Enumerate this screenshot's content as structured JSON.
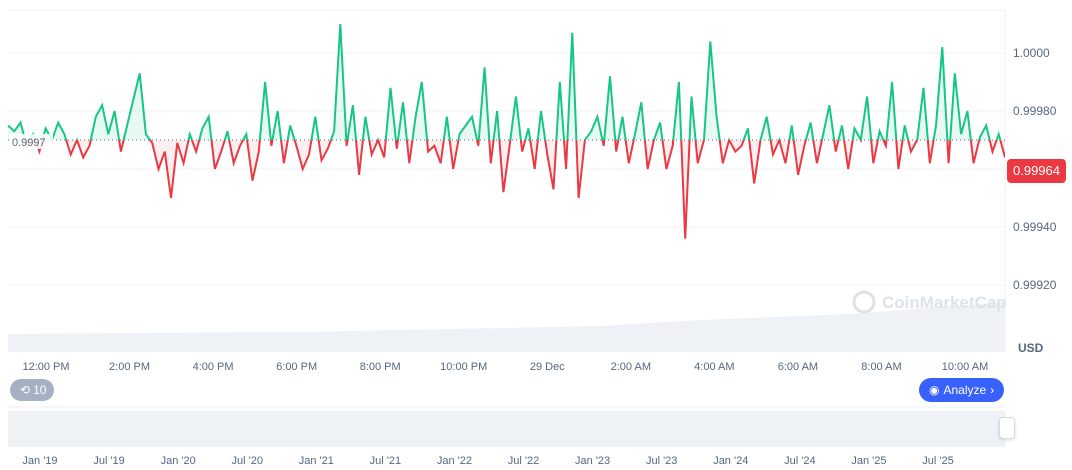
{
  "chart_data": {
    "type": "line",
    "currency_label": "USD",
    "reference_value": 0.9997,
    "reference_label": "0.9997",
    "current_price": 0.99964,
    "current_price_label": "0.99964",
    "ylim": [
      0.99905,
      1.00015
    ],
    "y_ticks": [
      {
        "v": 1.0,
        "label": "1.0000"
      },
      {
        "v": 0.9998,
        "label": "0.99980"
      },
      {
        "v": 0.9996,
        "label": "0.99960"
      },
      {
        "v": 0.9994,
        "label": "0.99940"
      },
      {
        "v": 0.9992,
        "label": "0.99920"
      }
    ],
    "x_ticks": [
      "12:00 PM",
      "2:00 PM",
      "4:00 PM",
      "6:00 PM",
      "8:00 PM",
      "10:00 PM",
      "29 Dec",
      "2:00 AM",
      "4:00 AM",
      "6:00 AM",
      "8:00 AM",
      "10:00 AM"
    ],
    "up_color": "#16c784",
    "down_color": "#ea3943",
    "values": [
      0.99975,
      0.99973,
      0.99976,
      0.99968,
      0.99972,
      0.99966,
      0.99974,
      0.9997,
      0.99976,
      0.99972,
      0.99965,
      0.9997,
      0.99964,
      0.99968,
      0.99978,
      0.99982,
      0.99972,
      0.9998,
      0.99966,
      0.99975,
      0.99984,
      0.99993,
      0.99972,
      0.99969,
      0.9996,
      0.99966,
      0.9995,
      0.99969,
      0.99962,
      0.99972,
      0.99966,
      0.99974,
      0.99978,
      0.9996,
      0.99966,
      0.99973,
      0.99962,
      0.99968,
      0.99972,
      0.99956,
      0.99966,
      0.9999,
      0.99968,
      0.9998,
      0.99962,
      0.99975,
      0.99968,
      0.9996,
      0.99965,
      0.99978,
      0.99963,
      0.99967,
      0.99973,
      1.0001,
      0.99968,
      0.99982,
      0.99958,
      0.99978,
      0.99965,
      0.9997,
      0.99964,
      0.99988,
      0.99967,
      0.99983,
      0.99962,
      0.99978,
      0.9999,
      0.99966,
      0.99968,
      0.99962,
      0.99978,
      0.9996,
      0.99972,
      0.99975,
      0.99978,
      0.99968,
      0.99995,
      0.99962,
      0.9998,
      0.99952,
      0.99968,
      0.99985,
      0.99966,
      0.99974,
      0.9996,
      0.9998,
      0.99965,
      0.99953,
      0.9999,
      0.9996,
      1.00007,
      0.9995,
      0.9997,
      0.99973,
      0.99978,
      0.99968,
      0.99992,
      0.99966,
      0.99978,
      0.99962,
      0.99972,
      0.99983,
      0.9996,
      0.9997,
      0.99976,
      0.9996,
      0.99968,
      0.9999,
      0.99936,
      0.99985,
      0.99962,
      0.9997,
      1.00004,
      0.99978,
      0.99962,
      0.9997,
      0.99966,
      0.99968,
      0.99974,
      0.99955,
      0.9997,
      0.99978,
      0.99965,
      0.9997,
      0.99962,
      0.99975,
      0.99958,
      0.99968,
      0.99976,
      0.99962,
      0.99972,
      0.99982,
      0.99966,
      0.99975,
      0.9996,
      0.99974,
      0.9997,
      0.99985,
      0.99962,
      0.99973,
      0.99968,
      0.9999,
      0.9996,
      0.99975,
      0.99966,
      0.9997,
      0.99988,
      0.99962,
      0.99975,
      1.00002,
      0.99962,
      0.99993,
      0.99972,
      0.9998,
      0.99962,
      0.99971,
      0.99975,
      0.99966,
      0.99972,
      0.99964
    ]
  },
  "navigator": {
    "x_ticks": [
      "Jan '19",
      "Jul '19",
      "Jan '20",
      "Jul '20",
      "Jan '21",
      "Jul '21",
      "Jan '22",
      "Jul '22",
      "Jan '23",
      "Jul '23",
      "Jan '24",
      "Jul '24",
      "Jan '25",
      "Jul '25"
    ]
  },
  "watermark": "CoinMarketCap",
  "controls": {
    "history_label": "10",
    "analyze_label": "Analyze"
  }
}
